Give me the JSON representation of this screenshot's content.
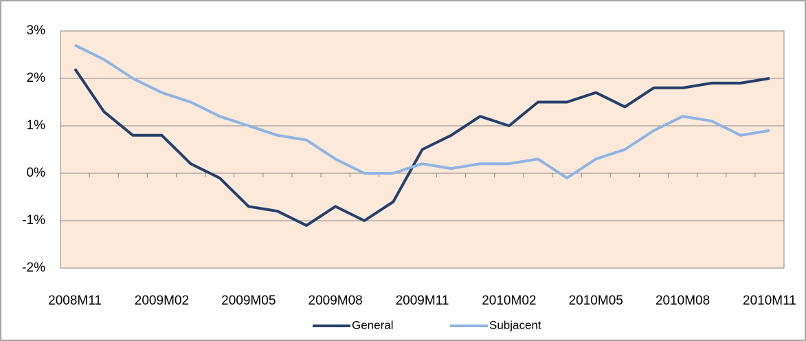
{
  "chart_data": {
    "type": "line",
    "categories": [
      "2008M11",
      null,
      null,
      "2009M02",
      null,
      null,
      "2009M05",
      null,
      null,
      "2009M08",
      null,
      null,
      "2009M11",
      null,
      null,
      "2010M02",
      null,
      null,
      "2010M05",
      null,
      null,
      "2010M08",
      null,
      null,
      "2010M11"
    ],
    "series": [
      {
        "name": "General",
        "color": "#243f6b",
        "values": [
          2.2,
          1.3,
          0.8,
          0.8,
          0.2,
          -0.1,
          -0.7,
          -0.8,
          -1.1,
          -0.7,
          -1.0,
          -0.6,
          0.5,
          0.8,
          1.2,
          1.0,
          1.5,
          1.5,
          1.7,
          1.4,
          1.8,
          1.8,
          1.9,
          1.9,
          2.0
        ]
      },
      {
        "name": "Subjacent",
        "color": "#8eb4e3",
        "values": [
          2.7,
          2.4,
          2.0,
          1.7,
          1.5,
          1.2,
          1.0,
          0.8,
          0.7,
          0.3,
          0.0,
          0.0,
          0.2,
          0.1,
          0.2,
          0.2,
          0.3,
          -0.1,
          0.3,
          0.5,
          0.9,
          1.2,
          1.1,
          0.8,
          0.9
        ]
      }
    ],
    "ylim": [
      -2,
      3
    ],
    "yticks": [
      {
        "value": -2,
        "label": "-2%"
      },
      {
        "value": -1,
        "label": "-1%"
      },
      {
        "value": 0,
        "label": "0%"
      },
      {
        "value": 1,
        "label": "1%"
      },
      {
        "value": 2,
        "label": "2%"
      },
      {
        "value": 3,
        "label": "3%"
      }
    ],
    "grid": true,
    "legend": "bottom"
  }
}
